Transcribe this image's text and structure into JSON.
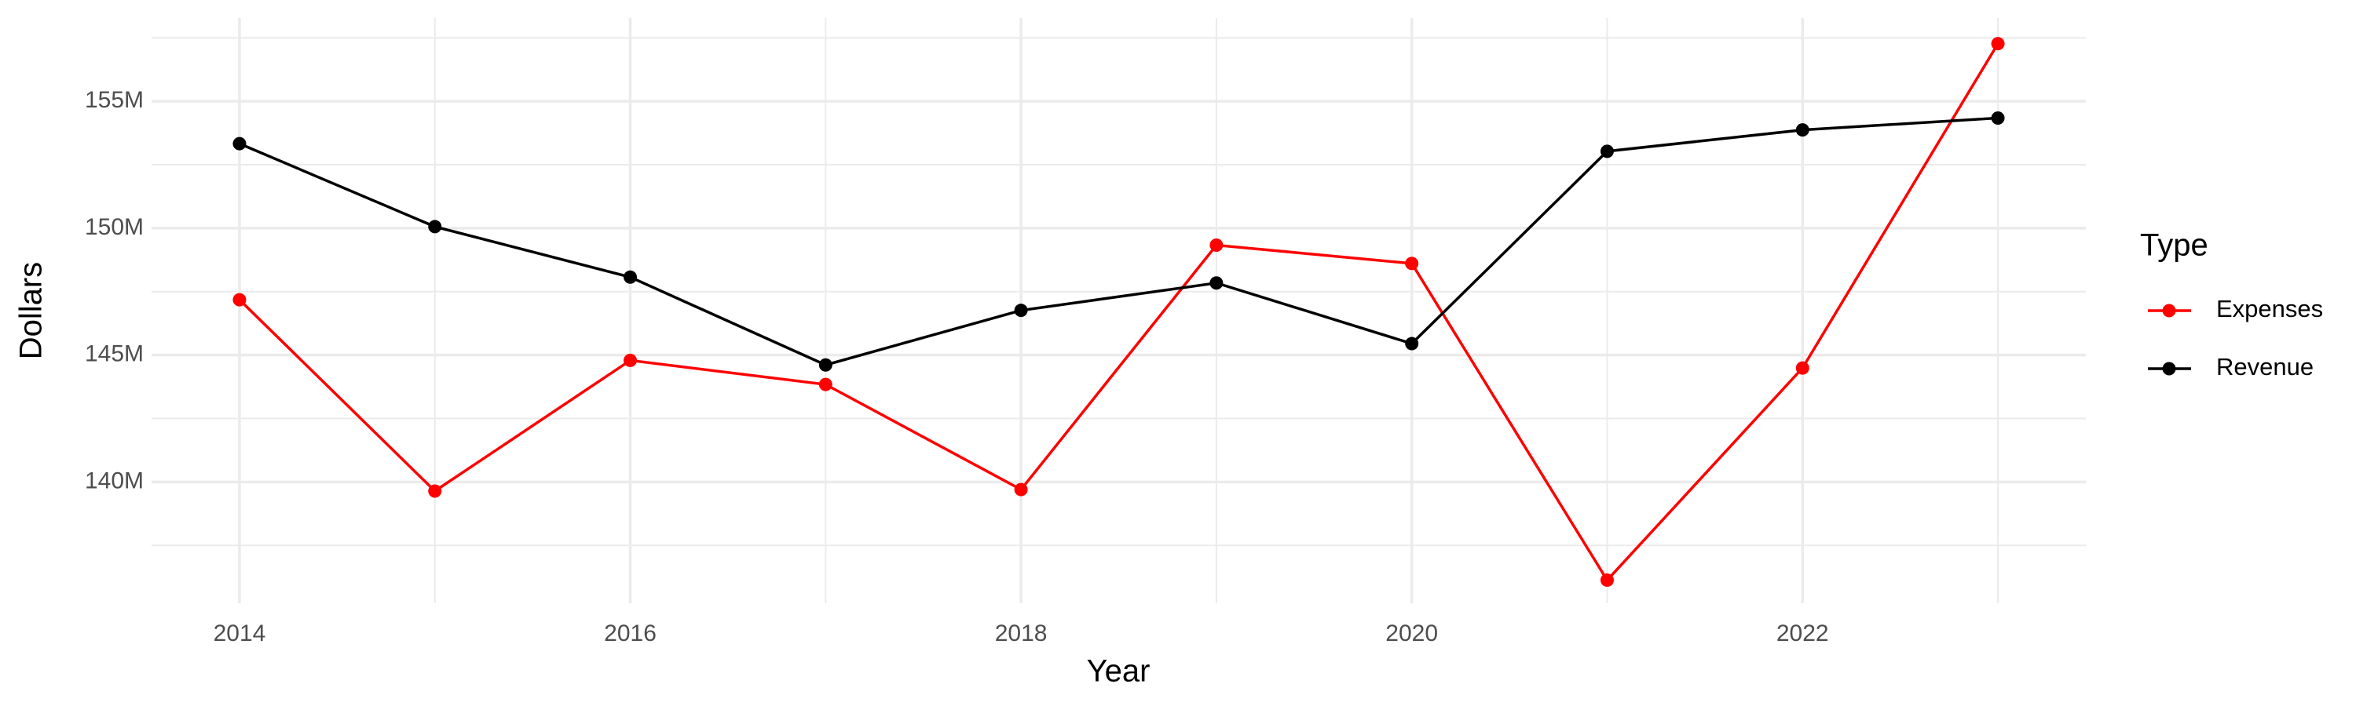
{
  "chart_data": {
    "type": "line",
    "x_label": "Year",
    "y_label": "Dollars",
    "legend_title": "Type",
    "legend_position": "right",
    "grid": true,
    "x": [
      2014,
      2015,
      2016,
      2017,
      2018,
      2019,
      2020,
      2021,
      2022,
      2023
    ],
    "series": [
      {
        "name": "Expenses",
        "color": "#ff0000",
        "values": [
          147180000,
          139640000,
          144790000,
          143840000,
          139700000,
          149330000,
          148610000,
          136130000,
          144490000,
          157270000
        ]
      },
      {
        "name": "Revenue",
        "color": "#000000",
        "values": [
          153330000,
          150060000,
          148070000,
          144610000,
          146760000,
          147840000,
          145450000,
          153030000,
          153870000,
          154340000
        ]
      }
    ],
    "xlim": [
      2013.55,
      2023.45
    ],
    "xticks": [
      2014,
      2016,
      2018,
      2020,
      2022
    ],
    "x_minor_gridlines": [
      2015,
      2017,
      2019,
      2021,
      2023
    ],
    "ylim": [
      135220000,
      158280000
    ],
    "yticks": [
      {
        "value": 140000000,
        "label": "140M"
      },
      {
        "value": 145000000,
        "label": "145M"
      },
      {
        "value": 150000000,
        "label": "150M"
      },
      {
        "value": 155000000,
        "label": "155M"
      }
    ],
    "y_minor_gridlines": [
      137500000,
      142500000,
      147500000,
      152500000,
      157500000
    ]
  }
}
